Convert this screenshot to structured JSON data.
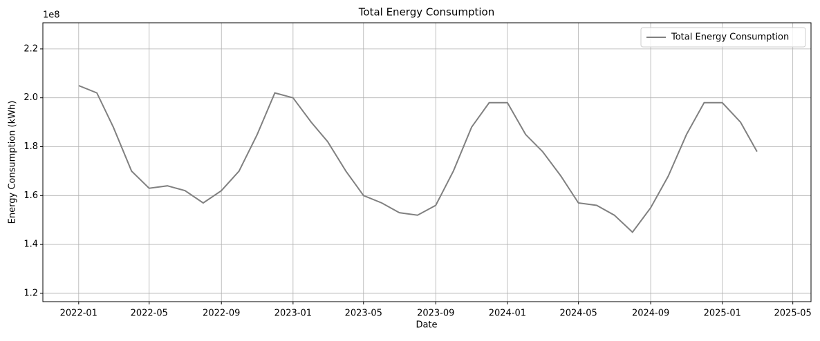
{
  "chart_data": {
    "type": "line",
    "title": "Total Energy Consumption",
    "xlabel": "Date",
    "ylabel": "Energy Consumption (kWh)",
    "y_offset_label": "1e8",
    "x": [
      "2022-01",
      "2022-02",
      "2022-03",
      "2022-04",
      "2022-05",
      "2022-06",
      "2022-07",
      "2022-08",
      "2022-09",
      "2022-10",
      "2022-11",
      "2022-12",
      "2023-01",
      "2023-02",
      "2023-03",
      "2023-04",
      "2023-05",
      "2023-06",
      "2023-07",
      "2023-08",
      "2023-09",
      "2023-10",
      "2023-11",
      "2023-12",
      "2024-01",
      "2024-02",
      "2024-03",
      "2024-04",
      "2024-05",
      "2024-06",
      "2024-07",
      "2024-08",
      "2024-09",
      "2024-10",
      "2024-11",
      "2024-12",
      "2025-01",
      "2025-02",
      "2025-03"
    ],
    "series": [
      {
        "name": "Total Energy Consumption",
        "color": "#808080",
        "values": [
          2.05,
          2.02,
          1.88,
          1.7,
          1.63,
          1.64,
          1.62,
          1.57,
          1.62,
          1.7,
          1.85,
          2.02,
          2.0,
          1.9,
          1.82,
          1.7,
          1.6,
          1.57,
          1.53,
          1.52,
          1.56,
          1.7,
          1.88,
          1.98,
          1.98,
          1.85,
          1.78,
          1.68,
          1.57,
          1.56,
          1.52,
          1.45,
          1.55,
          1.68,
          1.85,
          1.98,
          1.98,
          1.9,
          1.78
        ]
      }
    ],
    "xlim": [
      "2021-11",
      "2025-06"
    ],
    "xticks": [
      "2022-01",
      "2022-05",
      "2022-09",
      "2023-01",
      "2023-05",
      "2023-09",
      "2024-01",
      "2024-05",
      "2024-09",
      "2025-01",
      "2025-05"
    ],
    "ylim": [
      1.166,
      2.307
    ],
    "yticks": [
      1.2,
      1.4,
      1.6,
      1.8,
      {
        "value": 2,
        "label": "2.0"
      },
      2.2
    ],
    "grid": true,
    "legend": "upper right"
  }
}
